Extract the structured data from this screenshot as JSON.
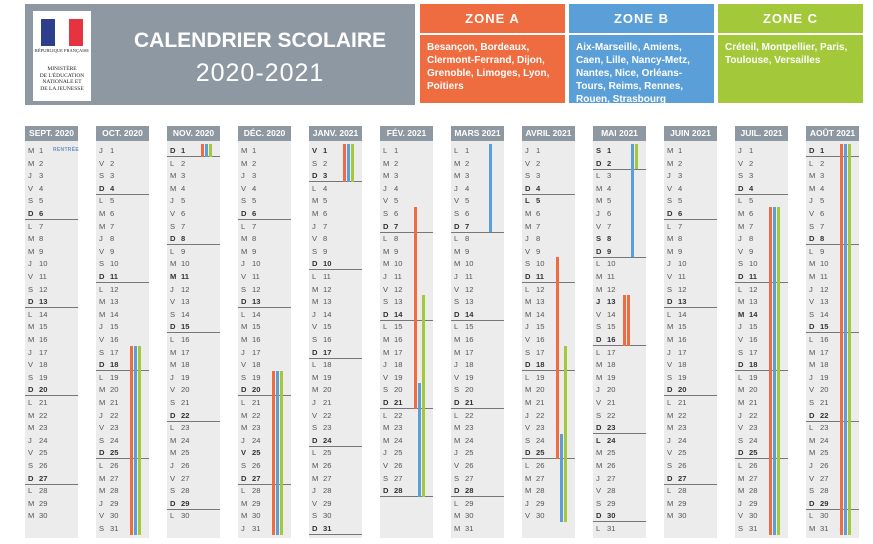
{
  "header": {
    "republic": "RÉPUBLIQUE FRANÇAISE",
    "ministry": "MINISTÈRE\nDE L'ÉDUCATION\nNATIONALE ET\nDE LA JEUNESSE",
    "title": "CALENDRIER SCOLAIRE",
    "year": "2020-2021"
  },
  "colors": {
    "zone_a": "#ee6c3f",
    "zone_b": "#5a9fd8",
    "zone_c": "#a3c83a"
  },
  "zones": [
    {
      "name": "ZONE A",
      "cities": "Besançon, Bordeaux, Clermont-Ferrand, Dijon, Grenoble, Limoges, Lyon, Poitiers"
    },
    {
      "name": "ZONE B",
      "cities": "Aix-Marseille, Amiens, Caen, Lille, Nancy-Metz, Nantes, Nice, Orléans-Tours, Reims, Rennes, Rouen, Strasbourg"
    },
    {
      "name": "ZONE C",
      "cities": "Créteil, Montpellier, Paris, Toulouse, Versailles"
    }
  ],
  "rentree_label": "RENTRÉE",
  "months": [
    {
      "label": "SEPT. 2020",
      "days": 30,
      "start_dow": 1,
      "holidays": [],
      "bars": {}
    },
    {
      "label": "OCT. 2020",
      "days": 31,
      "start_dow": 3,
      "holidays": [],
      "bars": {
        "a": [
          17,
          31
        ],
        "b": [
          17,
          31
        ],
        "c": [
          17,
          31
        ]
      }
    },
    {
      "label": "NOV. 2020",
      "days": 30,
      "start_dow": 6,
      "holidays": [
        1,
        11
      ],
      "bars": {
        "a": [
          1,
          1
        ],
        "b": [
          1,
          1
        ],
        "c": [
          1,
          1
        ]
      }
    },
    {
      "label": "DÉC. 2020",
      "days": 31,
      "start_dow": 1,
      "holidays": [
        25
      ],
      "bars": {
        "a": [
          19,
          31
        ],
        "b": [
          19,
          31
        ],
        "c": [
          19,
          31
        ]
      }
    },
    {
      "label": "JANV. 2021",
      "days": 31,
      "start_dow": 4,
      "holidays": [
        1
      ],
      "bars": {
        "a": [
          1,
          3
        ],
        "b": [
          1,
          3
        ],
        "c": [
          1,
          3
        ]
      }
    },
    {
      "label": "FÉV. 2021",
      "days": 28,
      "start_dow": 0,
      "holidays": [],
      "bars": {
        "a": [
          6,
          21
        ],
        "b": [
          20,
          28
        ],
        "c": [
          13,
          28
        ]
      }
    },
    {
      "label": "MARS 2021",
      "days": 31,
      "start_dow": 0,
      "holidays": [],
      "bars": {
        "b": [
          1,
          7
        ]
      }
    },
    {
      "label": "AVRIL 2021",
      "days": 30,
      "start_dow": 3,
      "holidays": [
        5
      ],
      "bars": {
        "a": [
          10,
          25
        ],
        "b": [
          24,
          30
        ],
        "c": [
          17,
          30
        ]
      }
    },
    {
      "label": "MAI 2021",
      "days": 31,
      "start_dow": 5,
      "holidays": [
        1,
        8,
        13,
        24
      ],
      "bars": {
        "a": [
          13,
          16
        ],
        "b": [
          1,
          9
        ],
        "c": [
          1,
          2
        ],
        "extra": [
          13,
          16
        ]
      }
    },
    {
      "label": "JUIN 2021",
      "days": 30,
      "start_dow": 1,
      "holidays": [],
      "bars": {}
    },
    {
      "label": "JUIL. 2021",
      "days": 31,
      "start_dow": 3,
      "holidays": [
        14
      ],
      "bars": {
        "a": [
          6,
          31
        ],
        "b": [
          6,
          31
        ],
        "c": [
          6,
          31
        ]
      }
    },
    {
      "label": "AOÛT 2021",
      "days": 31,
      "start_dow": 6,
      "holidays": [
        15
      ],
      "bars": {
        "a": [
          1,
          31
        ],
        "b": [
          1,
          31
        ],
        "c": [
          1,
          31
        ]
      }
    }
  ],
  "weekday_letters": [
    "L",
    "M",
    "M",
    "J",
    "V",
    "S",
    "D"
  ]
}
